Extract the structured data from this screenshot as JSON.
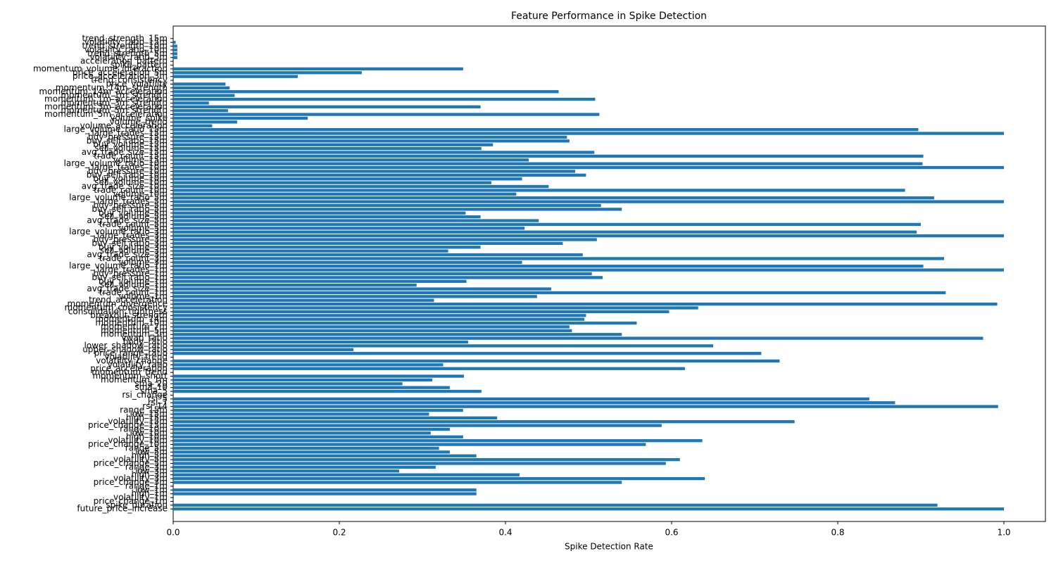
{
  "chart_data": {
    "type": "barh",
    "title": "Feature Performance in Spike Detection",
    "xlabel": "Spike Detection Rate",
    "color": "#1f77b4",
    "grid": false,
    "xlim": [
      0,
      1.05
    ],
    "xticks": [
      {
        "value": 0,
        "label": "0.0"
      },
      0.2,
      0.4,
      0.6,
      0.8,
      {
        "value": 1,
        "label": "1.0"
      }
    ],
    "categories": [
      "future_price_increase",
      "spike_duration",
      "price_change_1m",
      "volatility_1m",
      "high_1m",
      "low_1m",
      "range_1m",
      "price_change_3m",
      "volatility_3m",
      "high_3m",
      "low_3m",
      "range_3m",
      "price_change_5m",
      "volatility_5m",
      "high_5m",
      "low_5m",
      "range_5m",
      "price_change_10m",
      "volatility_10m",
      "high_10m",
      "low_10m",
      "range_10m",
      "price_change_15m",
      "volatility_15m",
      "high_15m",
      "low_15m",
      "range_15m",
      "rsi_14",
      "rsi_7",
      "rsi_5",
      "rsi_change",
      "sma_5",
      "sma_10",
      "sma_20",
      "momentum_1m",
      "momentum_short",
      "momentum_trend",
      "price_acceleration",
      "volatility_ratio",
      "volatility_change",
      "volatility_trend",
      "price_range_ratio",
      "upper_shadow_ratio",
      "lower_shadow_ratio",
      "body_ratio",
      "vwap_ratio",
      "momentum_3m",
      "momentum_5m",
      "momentum_7m",
      "momentum_10m",
      "momentum_14m",
      "breakout_strength",
      "consolidation_tightness",
      "momentum_consistency",
      "momentum_divergence",
      "trend_acceleration",
      "volume_1m",
      "trade_count_1m",
      "avg_trade_size_1m",
      "sell_volume_1m",
      "buy_volume_1m",
      "buy_sell_ratio_1m",
      "buy_pressure_1m",
      "large_trades_1m",
      "large_volume_ratio_1m",
      "volume_3m",
      "trade_count_3m",
      "avg_trade_size_3m",
      "sell_volume_3m",
      "buy_volume_3m",
      "buy_sell_ratio_3m",
      "buy_pressure_3m",
      "large_trades_3m",
      "large_volume_ratio_3m",
      "volume_5m",
      "trade_count_5m",
      "avg_trade_size_5m",
      "sell_volume_5m",
      "buy_volume_5m",
      "buy_sell_ratio_5m",
      "buy_pressure_5m",
      "large_trades_5m",
      "large_volume_ratio_5m",
      "volume_10m",
      "trade_count_10m",
      "avg_trade_size_10m",
      "sell_volume_10m",
      "buy_volume_10m",
      "buy_sell_ratio_10m",
      "buy_pressure_10m",
      "large_trades_10m",
      "large_volume_ratio_10m",
      "volume_15m",
      "trade_count_15m",
      "avg_trade_size_15m",
      "sell_volume_15m",
      "buy_volume_15m",
      "buy_sell_ratio_15m",
      "buy_pressure_15m",
      "large_trades_15m",
      "large_volume_ratio_15m",
      "volume_acceleration",
      "volume_trend",
      "volume_spike",
      "momentum_5m_acceleration",
      "momentum_5m_strength",
      "momentum_3m_acceleration",
      "momentum_3m_strength",
      "momentum_1m_acceleration",
      "momentum_1m_strength",
      "momentum_14m_acceleration",
      "momentum_14m_strength",
      "price_volatility",
      "trend_consistency",
      "price_acceleration_3m",
      "price_acceleration_5m",
      "momentum_volume_interaction",
      "spike_pattern",
      "acceleration_pattern",
      "volatility_ratio_5m",
      "trend_strength_5m",
      "volatility_ratio_10m",
      "trend_strength_10m",
      "volatility_ratio_15m",
      "trend_strength_15m"
    ],
    "values": [
      1.0,
      0.92,
      0,
      0,
      0.365,
      0.365,
      0,
      0.54,
      0.64,
      0.417,
      0.272,
      0.316,
      0.593,
      0.61,
      0.365,
      0.333,
      0.32,
      0.569,
      0.637,
      0.349,
      0.31,
      0.333,
      0.588,
      0.748,
      0.39,
      0.308,
      0.349,
      0.993,
      0.869,
      0.838,
      0,
      0.371,
      0.333,
      0.276,
      0.312,
      0.35,
      0,
      0.616,
      0.325,
      0.73,
      0,
      0.708,
      0.217,
      0.65,
      0.355,
      0.975,
      0.54,
      0.48,
      0.477,
      0.558,
      0.495,
      0.497,
      0.597,
      0.632,
      0.992,
      0.314,
      0.438,
      0.93,
      0.455,
      0.293,
      0.353,
      0.517,
      0.504,
      1.0,
      0.903,
      0.42,
      0.928,
      0.493,
      0.331,
      0.37,
      0.469,
      0.51,
      1.0,
      0.895,
      0.423,
      0.9,
      0.44,
      0.37,
      0.352,
      0.54,
      0.515,
      1.0,
      0.916,
      0.413,
      0.881,
      0.452,
      0.383,
      0.42,
      0.497,
      0.484,
      1.0,
      0.902,
      0.428,
      0.903,
      0.507,
      0.371,
      0.385,
      0.477,
      0.474,
      1.0,
      0.897,
      0.047,
      0.077,
      0.162,
      0.513,
      0.066,
      0.37,
      0.043,
      0.508,
      0.074,
      0.464,
      0.068,
      0.063,
      0,
      0.15,
      0.227,
      0.349,
      0,
      0,
      0.005,
      0.005,
      0.005,
      0.005,
      0.003,
      0
    ]
  }
}
